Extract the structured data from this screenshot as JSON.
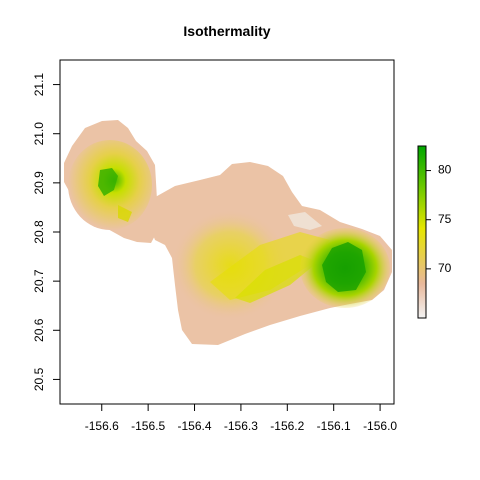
{
  "map": {
    "title": "Isothermality",
    "x_ticks": [
      "-156.6",
      "-156.5",
      "-156.4",
      "-156.3",
      "-156.2",
      "-156.1",
      "-156.0"
    ],
    "x_tick_values": [
      -156.6,
      -156.5,
      -156.4,
      -156.3,
      -156.2,
      -156.1,
      -156.0
    ],
    "y_ticks": [
      "20.5",
      "20.6",
      "20.7",
      "20.8",
      "20.9",
      "21.0",
      "21.1"
    ],
    "y_tick_values": [
      20.5,
      20.6,
      20.7,
      20.8,
      20.9,
      21.0,
      21.1
    ],
    "xlim": [
      -156.69,
      -155.97
    ],
    "ylim": [
      20.45,
      21.15
    ],
    "legend": {
      "labels": [
        "70",
        "75",
        "80"
      ],
      "values": [
        70,
        75,
        80
      ],
      "range": [
        65,
        82.5
      ],
      "colors": [
        "#f3f3f3",
        "#e8b89b",
        "#e6e600",
        "#63c600",
        "#00a600"
      ]
    }
  }
}
